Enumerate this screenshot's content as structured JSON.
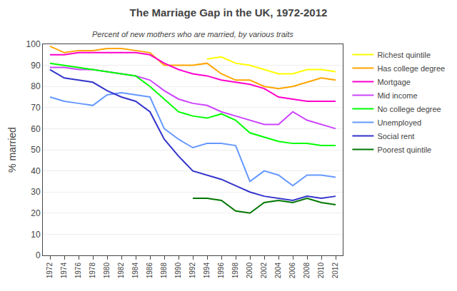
{
  "chart_data": {
    "type": "line",
    "title": "The Marriage Gap in the UK, 1972-2012",
    "subtitle": "Percent of new mothers who are married, by various traits",
    "ylabel": "% married",
    "series": [
      {
        "name": "Richest quintile",
        "color": "#FFFF00",
        "x": [
          1994,
          1996,
          1998,
          2000,
          2002,
          2004,
          2006,
          2008,
          2010,
          2012
        ],
        "values": [
          93,
          94,
          91,
          90,
          88,
          86,
          86,
          88,
          88,
          87
        ]
      },
      {
        "name": "Has college degree",
        "color": "#FFA500",
        "x": [
          1972,
          1974,
          1976,
          1978,
          1980,
          1982,
          1984,
          1986,
          1988,
          1990,
          1992,
          1994,
          1996,
          1998,
          2000,
          2002,
          2004,
          2006,
          2008,
          2010,
          2012
        ],
        "values": [
          99,
          96,
          97,
          97,
          98,
          98,
          97,
          96,
          90,
          90,
          90,
          91,
          86,
          83,
          83,
          80,
          79,
          80,
          82,
          84,
          83
        ]
      },
      {
        "name": "Mortgage",
        "color": "#FF00CC",
        "x": [
          1972,
          1974,
          1976,
          1978,
          1980,
          1982,
          1984,
          1986,
          1988,
          1990,
          1992,
          1994,
          1996,
          1998,
          2000,
          2002,
          2004,
          2006,
          2008,
          2010,
          2012
        ],
        "values": [
          95,
          95,
          96,
          96,
          96,
          96,
          96,
          95,
          91,
          88,
          86,
          85,
          83,
          82,
          81,
          79,
          75,
          74,
          73,
          73,
          73
        ]
      },
      {
        "name": "Mid income",
        "color": "#CC44FF",
        "x": [
          1972,
          1974,
          1976,
          1978,
          1980,
          1982,
          1984,
          1986,
          1988,
          1990,
          1992,
          1994,
          1996,
          1998,
          2000,
          2002,
          2004,
          2006,
          2008,
          2010,
          2012
        ],
        "values": [
          89,
          89,
          88,
          88,
          87,
          86,
          85,
          83,
          78,
          74,
          72,
          71,
          68,
          66,
          64,
          62,
          62,
          68,
          64,
          62,
          60
        ]
      },
      {
        "name": "No college degree",
        "color": "#00FF00",
        "x": [
          1972,
          1974,
          1976,
          1978,
          1980,
          1982,
          1984,
          1986,
          1988,
          1990,
          1992,
          1994,
          1996,
          1998,
          2000,
          2002,
          2004,
          2006,
          2008,
          2010,
          2012
        ],
        "values": [
          91,
          90,
          89,
          88,
          87,
          86,
          85,
          80,
          74,
          68,
          66,
          65,
          67,
          64,
          58,
          56,
          54,
          53,
          53,
          52,
          52
        ]
      },
      {
        "name": "Unemployed",
        "color": "#6699FF",
        "x": [
          1972,
          1974,
          1976,
          1978,
          1980,
          1982,
          1984,
          1986,
          1988,
          1990,
          1992,
          1994,
          1996,
          1998,
          2000,
          2002,
          2004,
          2006,
          2008,
          2010,
          2012
        ],
        "values": [
          75,
          73,
          72,
          71,
          76,
          77,
          76,
          75,
          60,
          55,
          51,
          53,
          53,
          52,
          35,
          40,
          38,
          33,
          38,
          38,
          37
        ]
      },
      {
        "name": "Social rent",
        "color": "#3333CC",
        "x": [
          1972,
          1974,
          1976,
          1978,
          1980,
          1982,
          1984,
          1986,
          1988,
          1990,
          1992,
          1994,
          1996,
          1998,
          2000,
          2002,
          2004,
          2006,
          2008,
          2010,
          2012
        ],
        "values": [
          88,
          84,
          83,
          82,
          78,
          75,
          73,
          68,
          55,
          47,
          40,
          38,
          36,
          33,
          30,
          28,
          27,
          26,
          28,
          27,
          28
        ]
      },
      {
        "name": "Poorest quintile",
        "color": "#007700",
        "x": [
          1992,
          1994,
          1996,
          1998,
          2000,
          2002,
          2004,
          2006,
          2008,
          2010,
          2012
        ],
        "values": [
          27,
          27,
          26,
          21,
          20,
          25,
          26,
          25,
          27,
          25,
          24
        ]
      }
    ],
    "xlim": [
      1971,
      2013
    ],
    "xticks": [
      1972,
      1974,
      1976,
      1978,
      1980,
      1982,
      1984,
      1986,
      1988,
      1990,
      1992,
      1994,
      1996,
      1998,
      2000,
      2002,
      2004,
      2006,
      2008,
      2010,
      2012
    ],
    "ylim": [
      0,
      100
    ],
    "yticks": [
      0,
      10,
      20,
      30,
      40,
      50,
      60,
      70,
      80,
      90,
      100
    ],
    "grid": "y",
    "legend": "right"
  }
}
